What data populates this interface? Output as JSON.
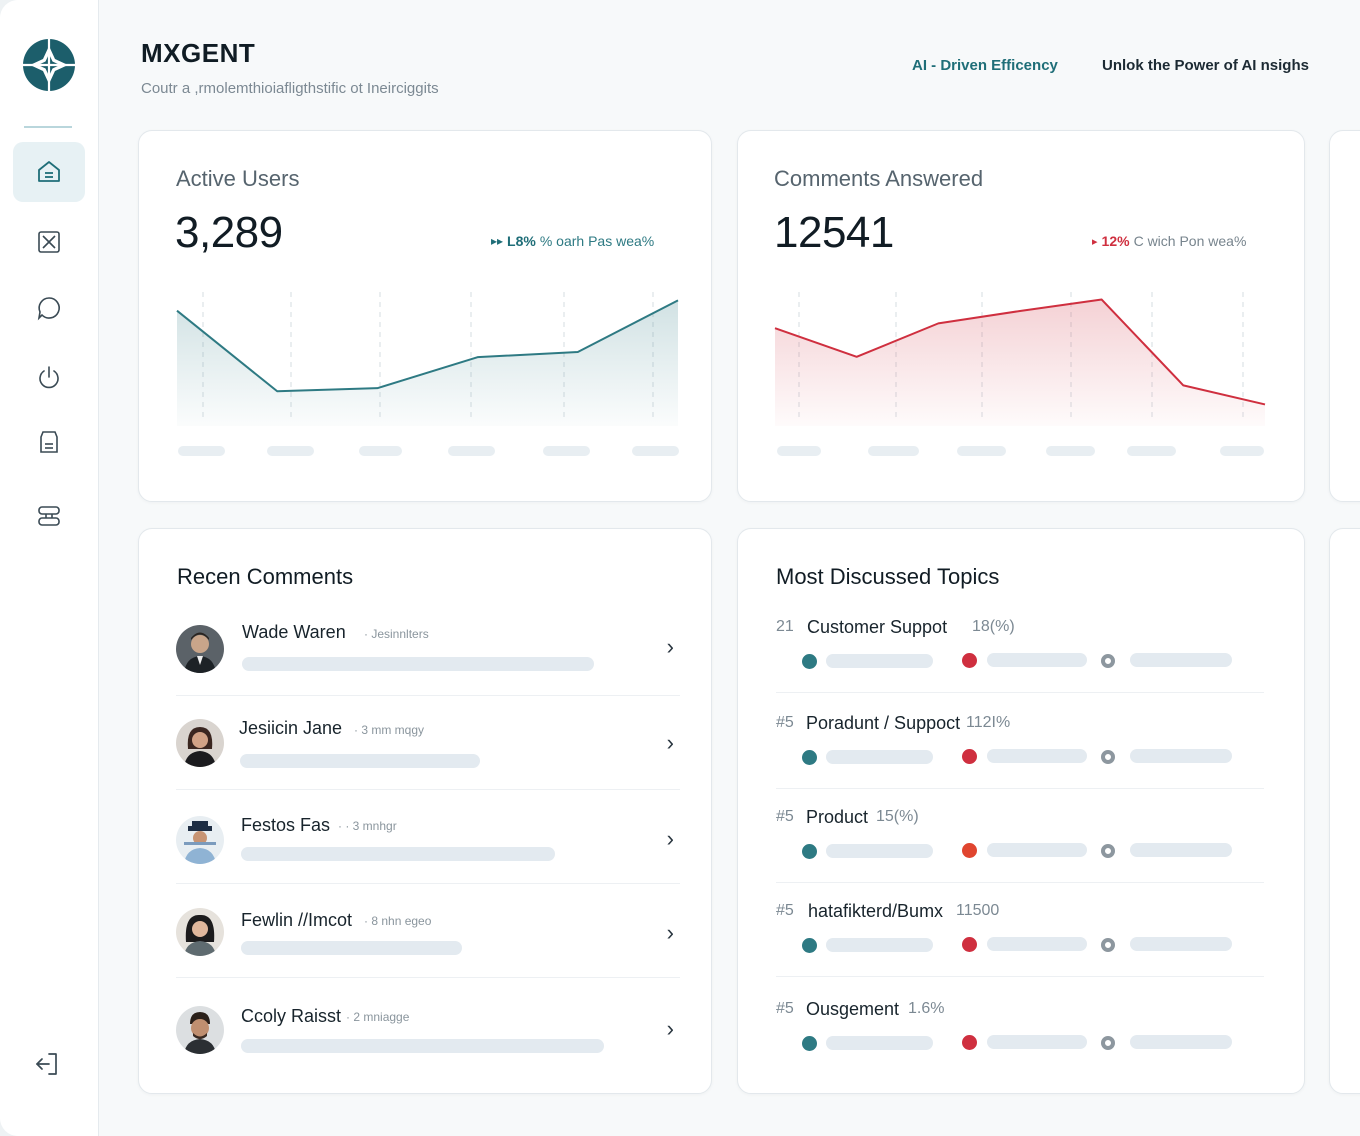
{
  "app": {
    "brand": "MXGENT",
    "tagline": "Coutr a ,rmolemthioiafligthstific ot Ineirciggits",
    "links": [
      "AI - Driven Efficency",
      "Unlok the Power of AI nsighs"
    ]
  },
  "sidebar": {
    "items": [
      {
        "icon": "home-icon",
        "active": true
      },
      {
        "icon": "image-icon",
        "active": false
      },
      {
        "icon": "chat-bubble-icon",
        "active": false
      },
      {
        "icon": "power-icon",
        "active": false
      },
      {
        "icon": "clipboard-icon",
        "active": false
      },
      {
        "icon": "server-icon",
        "active": false
      }
    ],
    "logout_icon": "logout-icon"
  },
  "colors": {
    "accent": "#1f6e78",
    "teal": "#2e7a83",
    "red": "#cf2f3f",
    "muted": "#e3eaf0"
  },
  "cards": {
    "active_users": {
      "title": "Active Users",
      "value": "3,289",
      "delta_num": "L8%",
      "delta_text": "% oarh Pas wea%"
    },
    "comments_answered": {
      "title": "Comments Answered",
      "value": "12541",
      "delta_num": "12%",
      "delta_text": "C wich Pon wea%"
    }
  },
  "chart_data": [
    {
      "type": "area",
      "series": [
        {
          "values": [
            100,
            22,
            25,
            55,
            60,
            110
          ]
        }
      ],
      "ylim": [
        0,
        120
      ],
      "grid": "vertical dashed",
      "color": "#2e7a83"
    },
    {
      "type": "area",
      "series": [
        {
          "values": [
            90,
            60,
            95,
            108,
            120,
            30,
            10
          ]
        }
      ],
      "ylim": [
        0,
        130
      ],
      "grid": "vertical dashed",
      "color": "#cf2f3f"
    }
  ],
  "recent_comments": {
    "title": "Recen Comments",
    "items": [
      {
        "name": "Wade Waren",
        "meta": "Jesinnlters"
      },
      {
        "name": "Jesiicin Jane",
        "meta": "3 mm mqgy"
      },
      {
        "name": "Festos Fas",
        "meta": "3 mnhgr"
      },
      {
        "name": "Fewlin //Imcot",
        "meta": "8 nhn egeo"
      },
      {
        "name": "Ccoly Raisst",
        "meta": "2 mniagge"
      }
    ]
  },
  "topics": {
    "title": "Most Discussed Topics",
    "items": [
      {
        "rank": "21",
        "name": "Customer Suppot",
        "pct": "18(%)"
      },
      {
        "rank": "#5",
        "name": "Poradunt / Suppoct",
        "pct": "112I%"
      },
      {
        "rank": "#5",
        "name": "Product",
        "pct": "15(%)"
      },
      {
        "rank": "#5",
        "name": "hatafikterd/Bumx",
        "pct": "11500"
      },
      {
        "rank": "#5",
        "name": "Ousgement",
        "pct": "1.6%"
      }
    ]
  }
}
